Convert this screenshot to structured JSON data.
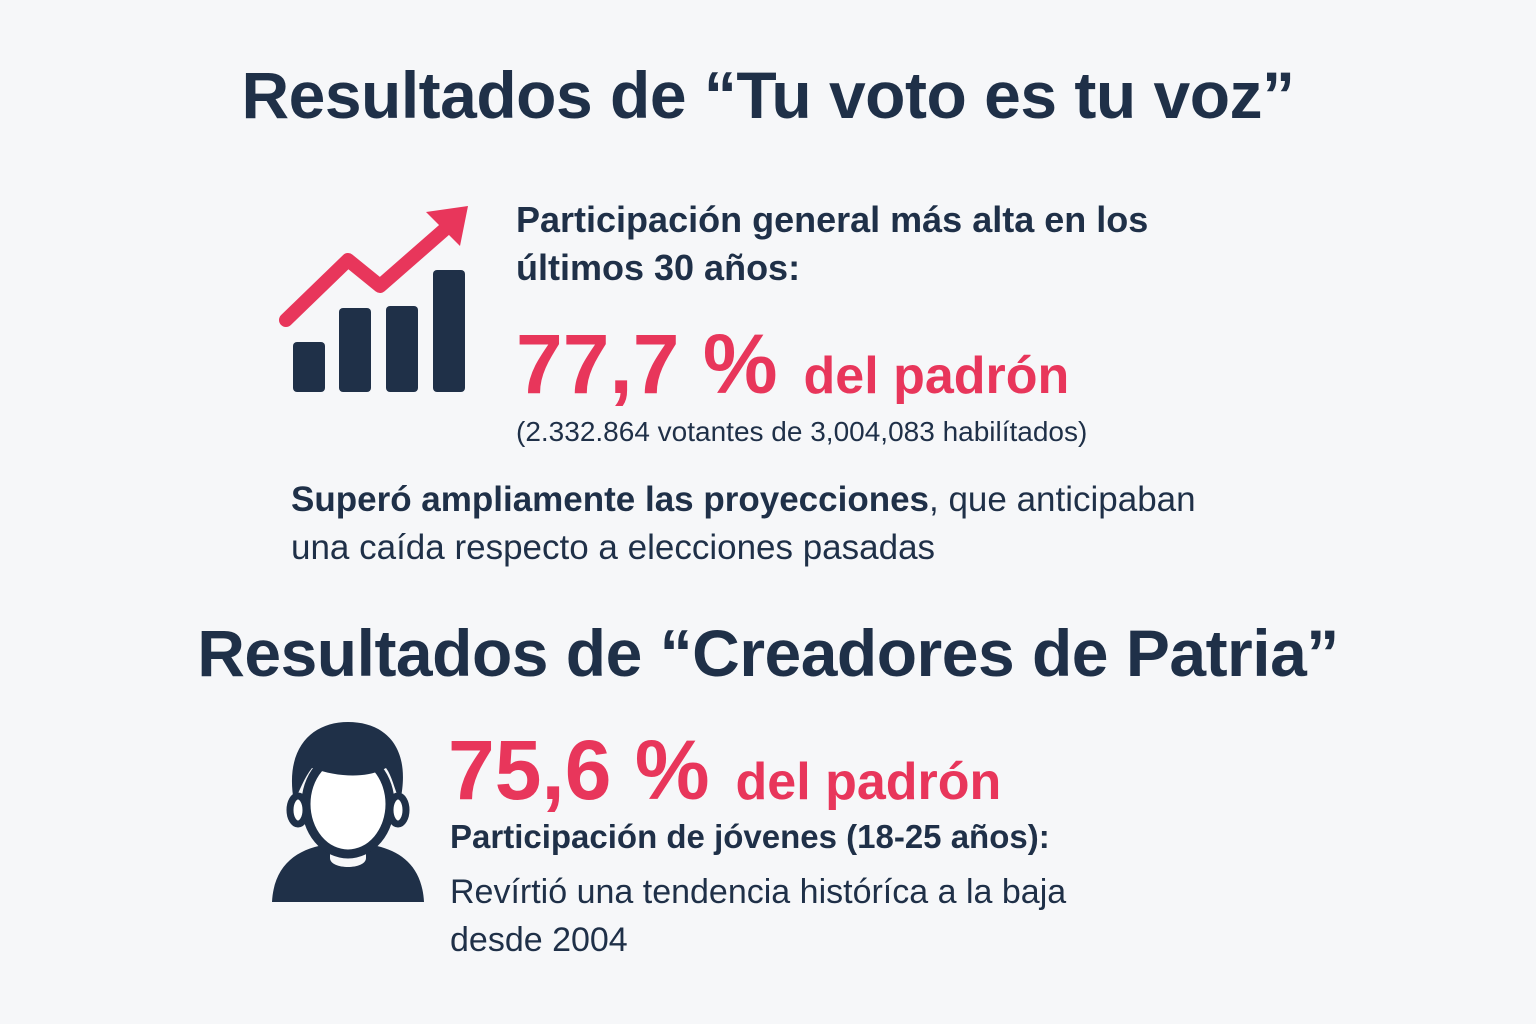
{
  "section1": {
    "title": "Resultados de “Tu voto es tu voz”",
    "icon": "rising-bar-chart-icon",
    "label_line1": "Participación general más alta en los",
    "label_line2": "últimos 30 años:",
    "stat_value": "77,7 %",
    "stat_unit": "del padrón",
    "detail": "(2.332.864 votantes de 3,004,083 habilítados)",
    "note_bold": "Superó ampliamente las proyecciones",
    "note_rest": ", que anticipaban",
    "note_line2": "una caída respecto a elecciones pasadas"
  },
  "section2": {
    "title": "Resultados de “Creadores de Patria”",
    "icon": "person-icon",
    "stat_value": "75,6 %",
    "stat_unit": "del padrón",
    "label": "Participación de jóvenes (18-25 años):",
    "desc_line1": "Revírtió una tendencia históríca a la baja",
    "desc_line2": "desde 2004"
  },
  "colors": {
    "navy": "#1f3048",
    "accent": "#e8365b",
    "background": "#f6f7f9"
  }
}
